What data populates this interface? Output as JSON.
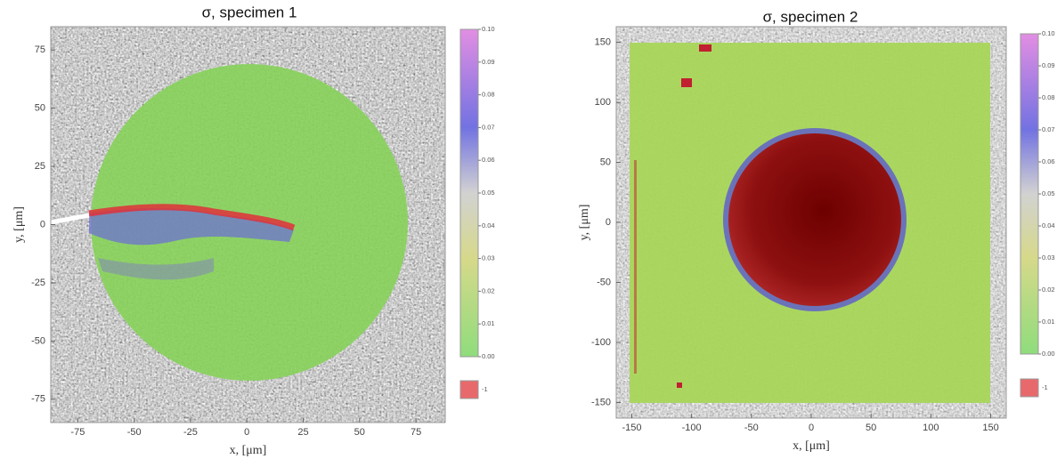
{
  "chart_data": [
    {
      "type": "heatmap",
      "title": "σ, specimen 1",
      "xlabel": "x, [μm]",
      "ylabel": "y, [μm]",
      "xlim": [
        -87,
        88
      ],
      "ylim": [
        -85,
        85
      ],
      "xticks": [
        -75,
        -50,
        -25,
        0,
        25,
        50,
        75
      ],
      "yticks": [
        -75,
        -50,
        -25,
        0,
        25,
        50,
        75
      ],
      "colorbar": {
        "lim": [
          0,
          0.1
        ],
        "ticks": [
          {
            "value": 0,
            "label": "0.00"
          },
          0.01,
          0.02,
          0.03,
          0.04,
          0.05,
          0.06,
          0.07,
          0.08,
          0.09,
          {
            "value": 0.1,
            "label": "0.10"
          }
        ],
        "missing_value": -1,
        "missing_color": "#e8696b"
      }
    },
    {
      "type": "heatmap",
      "title": "σ, specimen 2",
      "xlabel": "x, [μm]",
      "ylabel": "y, [μm]",
      "xlim": [
        -163,
        163
      ],
      "ylim": [
        -163,
        163
      ],
      "xticks": [
        -150,
        -100,
        -50,
        0,
        50,
        100,
        150
      ],
      "yticks": [
        -150,
        -100,
        -50,
        0,
        50,
        100,
        150
      ],
      "colorbar": {
        "lim": [
          0,
          0.1
        ],
        "ticks": [
          {
            "value": 0,
            "label": "0.00"
          },
          0.01,
          0.02,
          0.03,
          0.04,
          0.05,
          0.06,
          0.07,
          0.08,
          0.09,
          {
            "value": 0.1,
            "label": "0.10"
          }
        ],
        "missing_value": -1,
        "missing_color": "#e8696b"
      }
    }
  ]
}
